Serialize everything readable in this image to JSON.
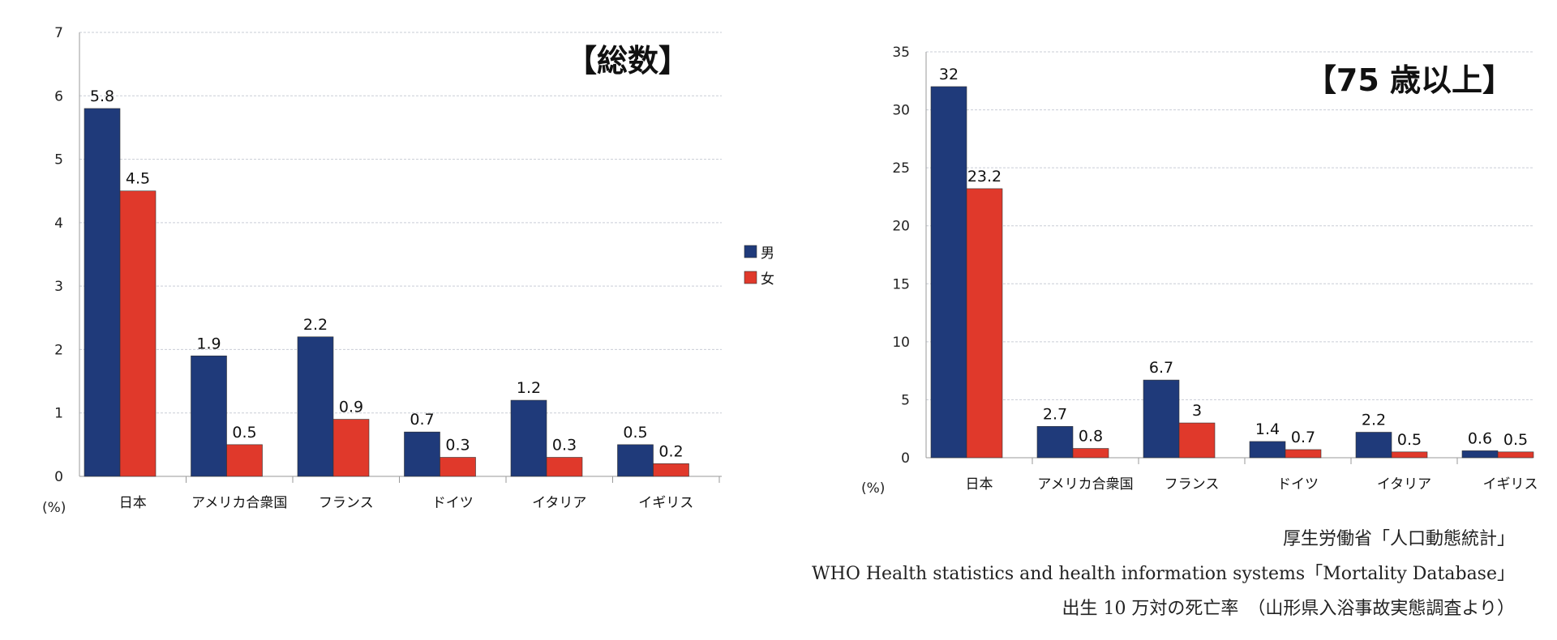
{
  "colors": {
    "male": "#1f3a7a",
    "female": "#e0392b",
    "grid": "#c9cdd6",
    "axis": "#9a9a9a"
  },
  "unit_label": "(%)",
  "legend": [
    "男",
    "女"
  ],
  "chart_data": [
    {
      "type": "bar",
      "title": "【総数】",
      "categories": [
        "日本",
        "アメリカ合衆国",
        "フランス",
        "ドイツ",
        "イタリア",
        "イギリス"
      ],
      "series": [
        {
          "name": "男",
          "values": [
            5.8,
            1.9,
            2.2,
            0.7,
            1.2,
            0.5
          ]
        },
        {
          "name": "女",
          "values": [
            4.5,
            0.5,
            0.9,
            0.3,
            0.3,
            0.2
          ]
        }
      ],
      "ylabel": "(%)",
      "ylim": [
        0,
        7
      ],
      "yticks": [
        0,
        1,
        2,
        3,
        4,
        5,
        6,
        7
      ],
      "grid": true,
      "legend_position": "right"
    },
    {
      "type": "bar",
      "title": "【75 歳以上】",
      "categories": [
        "日本",
        "アメリカ合衆国",
        "フランス",
        "ドイツ",
        "イタリア",
        "イギリス"
      ],
      "series": [
        {
          "name": "男",
          "values": [
            32,
            2.7,
            6.7,
            1.4,
            2.2,
            0.6
          ]
        },
        {
          "name": "女",
          "values": [
            23.2,
            0.8,
            3,
            0.7,
            0.5,
            0.5
          ]
        }
      ],
      "ylabel": "(%)",
      "ylim": [
        0,
        35
      ],
      "yticks": [
        0,
        5,
        10,
        15,
        20,
        25,
        30,
        35
      ],
      "grid": true
    }
  ],
  "sources": [
    "厚生労働省「人口動態統計」",
    "WHO Health statistics and health information systems「Mortality Database」",
    "出生 10 万対の死亡率　（山形県入浴事故実態調査より）"
  ]
}
